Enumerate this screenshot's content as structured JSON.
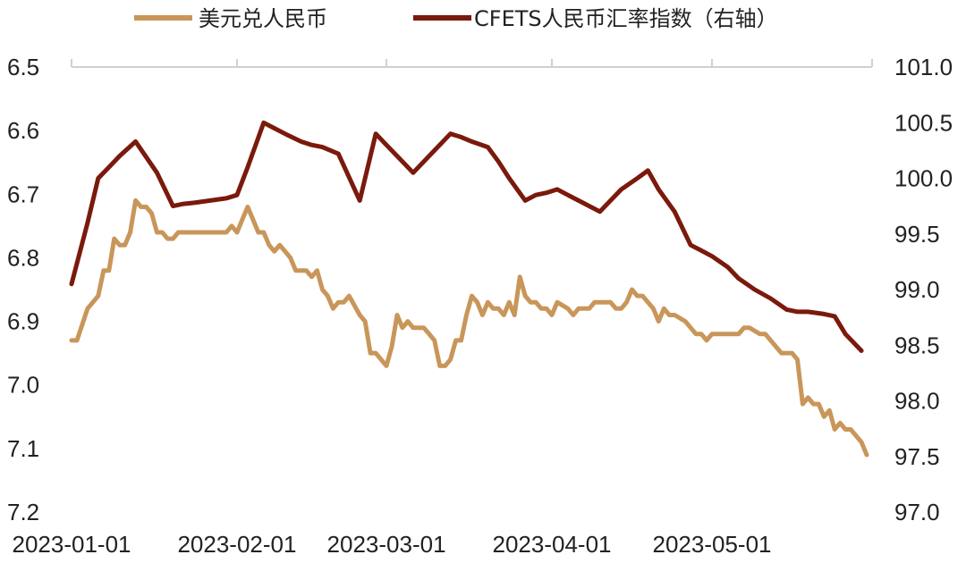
{
  "chart_data": {
    "type": "line",
    "left_axis": {
      "ticks": [
        "6.5",
        "6.6",
        "6.7",
        "6.8",
        "6.9",
        "7.0",
        "7.1",
        "7.2"
      ],
      "ylim": [
        6.5,
        7.2
      ],
      "inverted": true
    },
    "right_axis": {
      "ticks": [
        "101.0",
        "100.5",
        "100.0",
        "99.5",
        "99.0",
        "98.5",
        "98.0",
        "97.5",
        "97.0"
      ],
      "ylim": [
        97.0,
        101.0
      ]
    },
    "x_axis": {
      "range": [
        "2023-01-01",
        "2023-05-31"
      ],
      "ticks": [
        {
          "date": "2023-01-01",
          "label": "2023-01-01"
        },
        {
          "date": "2023-02-01",
          "label": "2023-02-01"
        },
        {
          "date": "2023-03-01",
          "label": "2023-03-01"
        },
        {
          "date": "2023-04-01",
          "label": "2023-04-01"
        },
        {
          "date": "2023-05-01",
          "label": "2023-05-01"
        }
      ]
    },
    "legend_position": "top",
    "grid": false,
    "series": [
      {
        "name": "美元兑人民币",
        "axis": "left",
        "color": "#C9965A",
        "points": [
          [
            "2023-01-01",
            6.93
          ],
          [
            "2023-01-02",
            6.93
          ],
          [
            "2023-01-04",
            6.88
          ],
          [
            "2023-01-06",
            6.86
          ],
          [
            "2023-01-07",
            6.82
          ],
          [
            "2023-01-08",
            6.82
          ],
          [
            "2023-01-09",
            6.77
          ],
          [
            "2023-01-10",
            6.78
          ],
          [
            "2023-01-11",
            6.78
          ],
          [
            "2023-01-12",
            6.76
          ],
          [
            "2023-01-13",
            6.71
          ],
          [
            "2023-01-14",
            6.72
          ],
          [
            "2023-01-15",
            6.72
          ],
          [
            "2023-01-16",
            6.73
          ],
          [
            "2023-01-17",
            6.76
          ],
          [
            "2023-01-18",
            6.76
          ],
          [
            "2023-01-19",
            6.77
          ],
          [
            "2023-01-20",
            6.77
          ],
          [
            "2023-01-21",
            6.76
          ],
          [
            "2023-01-22",
            6.76
          ],
          [
            "2023-01-27",
            6.76
          ],
          [
            "2023-01-30",
            6.76
          ],
          [
            "2023-01-31",
            6.75
          ],
          [
            "2023-02-01",
            6.76
          ],
          [
            "2023-02-02",
            6.74
          ],
          [
            "2023-02-03",
            6.72
          ],
          [
            "2023-02-05",
            6.76
          ],
          [
            "2023-02-06",
            6.76
          ],
          [
            "2023-02-07",
            6.78
          ],
          [
            "2023-02-08",
            6.79
          ],
          [
            "2023-02-09",
            6.78
          ],
          [
            "2023-02-10",
            6.79
          ],
          [
            "2023-02-11",
            6.8
          ],
          [
            "2023-02-12",
            6.82
          ],
          [
            "2023-02-14",
            6.82
          ],
          [
            "2023-02-15",
            6.83
          ],
          [
            "2023-02-16",
            6.82
          ],
          [
            "2023-02-17",
            6.85
          ],
          [
            "2023-02-18",
            6.86
          ],
          [
            "2023-02-19",
            6.88
          ],
          [
            "2023-02-20",
            6.87
          ],
          [
            "2023-02-21",
            6.87
          ],
          [
            "2023-02-22",
            6.86
          ],
          [
            "2023-02-24",
            6.89
          ],
          [
            "2023-02-25",
            6.9
          ],
          [
            "2023-02-26",
            6.95
          ],
          [
            "2023-02-27",
            6.95
          ],
          [
            "2023-02-28",
            6.96
          ],
          [
            "2023-03-01",
            6.97
          ],
          [
            "2023-03-02",
            6.94
          ],
          [
            "2023-03-03",
            6.89
          ],
          [
            "2023-03-04",
            6.91
          ],
          [
            "2023-03-05",
            6.9
          ],
          [
            "2023-03-06",
            6.91
          ],
          [
            "2023-03-08",
            6.91
          ],
          [
            "2023-03-09",
            6.92
          ],
          [
            "2023-03-10",
            6.93
          ],
          [
            "2023-03-11",
            6.97
          ],
          [
            "2023-03-12",
            6.97
          ],
          [
            "2023-03-13",
            6.96
          ],
          [
            "2023-03-14",
            6.93
          ],
          [
            "2023-03-15",
            6.93
          ],
          [
            "2023-03-16",
            6.89
          ],
          [
            "2023-03-17",
            6.86
          ],
          [
            "2023-03-18",
            6.87
          ],
          [
            "2023-03-19",
            6.89
          ],
          [
            "2023-03-20",
            6.87
          ],
          [
            "2023-03-21",
            6.88
          ],
          [
            "2023-03-22",
            6.88
          ],
          [
            "2023-03-23",
            6.89
          ],
          [
            "2023-03-24",
            6.87
          ],
          [
            "2023-03-25",
            6.89
          ],
          [
            "2023-03-26",
            6.83
          ],
          [
            "2023-03-27",
            6.86
          ],
          [
            "2023-03-28",
            6.87
          ],
          [
            "2023-03-29",
            6.87
          ],
          [
            "2023-03-30",
            6.88
          ],
          [
            "2023-03-31",
            6.88
          ],
          [
            "2023-04-01",
            6.89
          ],
          [
            "2023-04-02",
            6.87
          ],
          [
            "2023-04-04",
            6.88
          ],
          [
            "2023-04-05",
            6.89
          ],
          [
            "2023-04-06",
            6.88
          ],
          [
            "2023-04-08",
            6.88
          ],
          [
            "2023-04-09",
            6.87
          ],
          [
            "2023-04-10",
            6.87
          ],
          [
            "2023-04-12",
            6.87
          ],
          [
            "2023-04-13",
            6.88
          ],
          [
            "2023-04-14",
            6.88
          ],
          [
            "2023-04-15",
            6.87
          ],
          [
            "2023-04-16",
            6.85
          ],
          [
            "2023-04-17",
            6.86
          ],
          [
            "2023-04-18",
            6.86
          ],
          [
            "2023-04-19",
            6.87
          ],
          [
            "2023-04-20",
            6.88
          ],
          [
            "2023-04-21",
            6.9
          ],
          [
            "2023-04-22",
            6.88
          ],
          [
            "2023-04-23",
            6.89
          ],
          [
            "2023-04-24",
            6.89
          ],
          [
            "2023-04-26",
            6.9
          ],
          [
            "2023-04-27",
            6.91
          ],
          [
            "2023-04-28",
            6.92
          ],
          [
            "2023-04-29",
            6.92
          ],
          [
            "2023-04-30",
            6.93
          ],
          [
            "2023-05-01",
            6.92
          ],
          [
            "2023-05-02",
            6.92
          ],
          [
            "2023-05-03",
            6.92
          ],
          [
            "2023-05-05",
            6.92
          ],
          [
            "2023-05-06",
            6.92
          ],
          [
            "2023-05-07",
            6.91
          ],
          [
            "2023-05-08",
            6.91
          ],
          [
            "2023-05-10",
            6.92
          ],
          [
            "2023-05-11",
            6.92
          ],
          [
            "2023-05-12",
            6.93
          ],
          [
            "2023-05-13",
            6.94
          ],
          [
            "2023-05-14",
            6.95
          ],
          [
            "2023-05-15",
            6.95
          ],
          [
            "2023-05-16",
            6.95
          ],
          [
            "2023-05-17",
            6.96
          ],
          [
            "2023-05-18",
            7.03
          ],
          [
            "2023-05-19",
            7.02
          ],
          [
            "2023-05-20",
            7.03
          ],
          [
            "2023-05-21",
            7.03
          ],
          [
            "2023-05-22",
            7.05
          ],
          [
            "2023-05-23",
            7.04
          ],
          [
            "2023-05-24",
            7.07
          ],
          [
            "2023-05-25",
            7.06
          ],
          [
            "2023-05-26",
            7.07
          ],
          [
            "2023-05-27",
            7.07
          ],
          [
            "2023-05-28",
            7.08
          ],
          [
            "2023-05-29",
            7.09
          ],
          [
            "2023-05-30",
            7.11
          ]
        ]
      },
      {
        "name": "CFETS人民币汇率指数（右轴）",
        "axis": "right",
        "color": "#7A1A0C",
        "points": [
          [
            "2023-01-01",
            99.05
          ],
          [
            "2023-01-04",
            99.6
          ],
          [
            "2023-01-06",
            100.0
          ],
          [
            "2023-01-08",
            100.1
          ],
          [
            "2023-01-10",
            100.2
          ],
          [
            "2023-01-13",
            100.33
          ],
          [
            "2023-01-17",
            100.05
          ],
          [
            "2023-01-20",
            99.75
          ],
          [
            "2023-01-22",
            99.77
          ],
          [
            "2023-01-24",
            99.78
          ],
          [
            "2023-01-27",
            99.8
          ],
          [
            "2023-01-30",
            99.82
          ],
          [
            "2023-02-01",
            99.85
          ],
          [
            "2023-02-03",
            100.1
          ],
          [
            "2023-02-06",
            100.5
          ],
          [
            "2023-02-08",
            100.45
          ],
          [
            "2023-02-10",
            100.4
          ],
          [
            "2023-02-13",
            100.33
          ],
          [
            "2023-02-15",
            100.3
          ],
          [
            "2023-02-17",
            100.28
          ],
          [
            "2023-02-20",
            100.22
          ],
          [
            "2023-02-24",
            99.8
          ],
          [
            "2023-02-27",
            100.4
          ],
          [
            "2023-03-01",
            100.3
          ],
          [
            "2023-03-03",
            100.2
          ],
          [
            "2023-03-06",
            100.05
          ],
          [
            "2023-03-08",
            100.15
          ],
          [
            "2023-03-10",
            100.25
          ],
          [
            "2023-03-13",
            100.4
          ],
          [
            "2023-03-15",
            100.37
          ],
          [
            "2023-03-17",
            100.33
          ],
          [
            "2023-03-20",
            100.28
          ],
          [
            "2023-03-22",
            100.15
          ],
          [
            "2023-03-24",
            100.0
          ],
          [
            "2023-03-27",
            99.8
          ],
          [
            "2023-03-29",
            99.85
          ],
          [
            "2023-03-31",
            99.87
          ],
          [
            "2023-04-02",
            99.9
          ],
          [
            "2023-04-04",
            99.85
          ],
          [
            "2023-04-06",
            99.8
          ],
          [
            "2023-04-08",
            99.75
          ],
          [
            "2023-04-10",
            99.7
          ],
          [
            "2023-04-12",
            99.8
          ],
          [
            "2023-04-14",
            99.9
          ],
          [
            "2023-04-17",
            100.0
          ],
          [
            "2023-04-19",
            100.07
          ],
          [
            "2023-04-21",
            99.9
          ],
          [
            "2023-04-24",
            99.7
          ],
          [
            "2023-04-27",
            99.4
          ],
          [
            "2023-04-29",
            99.35
          ],
          [
            "2023-05-01",
            99.3
          ],
          [
            "2023-05-04",
            99.2
          ],
          [
            "2023-05-06",
            99.1
          ],
          [
            "2023-05-09",
            99.0
          ],
          [
            "2023-05-12",
            98.92
          ],
          [
            "2023-05-15",
            98.82
          ],
          [
            "2023-05-17",
            98.8
          ],
          [
            "2023-05-19",
            98.8
          ],
          [
            "2023-05-22",
            98.78
          ],
          [
            "2023-05-24",
            98.76
          ],
          [
            "2023-05-26",
            98.6
          ],
          [
            "2023-05-29",
            98.45
          ]
        ]
      }
    ]
  }
}
